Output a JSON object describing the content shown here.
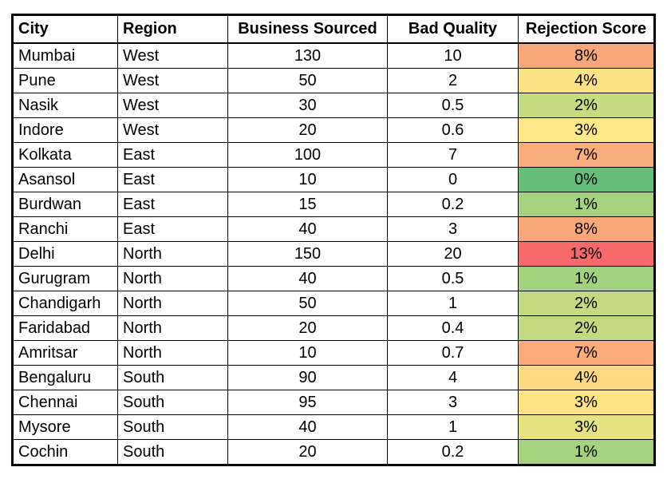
{
  "table": {
    "headers": [
      "City",
      "Region",
      "Business Sourced",
      "Bad Quality",
      "Rejection Score"
    ],
    "rows": [
      {
        "city": "Mumbai",
        "region": "West",
        "business": "130",
        "bad": "10",
        "rejection": "8%",
        "color": "#f8a77a"
      },
      {
        "city": "Pune",
        "region": "West",
        "business": "50",
        "bad": "2",
        "rejection": "4%",
        "color": "#fde186"
      },
      {
        "city": "Nasik",
        "region": "West",
        "business": "30",
        "bad": "0.5",
        "rejection": "2%",
        "color": "#c6dc82"
      },
      {
        "city": "Indore",
        "region": "West",
        "business": "20",
        "bad": "0.6",
        "rejection": "3%",
        "color": "#fde887"
      },
      {
        "city": "Kolkata",
        "region": "East",
        "business": "100",
        "bad": "7",
        "rejection": "7%",
        "color": "#f9ad7b"
      },
      {
        "city": "Asansol",
        "region": "East",
        "business": "10",
        "bad": "0",
        "rejection": "0%",
        "color": "#63be7b"
      },
      {
        "city": "Burdwan",
        "region": "East",
        "business": "15",
        "bad": "0.2",
        "rejection": "1%",
        "color": "#a6d280"
      },
      {
        "city": "Ranchi",
        "region": "East",
        "business": "40",
        "bad": "3",
        "rejection": "8%",
        "color": "#f8a77a"
      },
      {
        "city": "Delhi",
        "region": "North",
        "business": "150",
        "bad": "20",
        "rejection": "13%",
        "color": "#f8696b"
      },
      {
        "city": "Gurugram",
        "region": "North",
        "business": "40",
        "bad": "0.5",
        "rejection": "1%",
        "color": "#a4d17f"
      },
      {
        "city": "Chandigarh",
        "region": "North",
        "business": "50",
        "bad": "1",
        "rejection": "2%",
        "color": "#c3da81"
      },
      {
        "city": "Faridabad",
        "region": "North",
        "business": "20",
        "bad": "0.4",
        "rejection": "2%",
        "color": "#c3da81"
      },
      {
        "city": "Amritsar",
        "region": "North",
        "business": "10",
        "bad": "0.7",
        "rejection": "7%",
        "color": "#f9ab7b"
      },
      {
        "city": "Bengaluru",
        "region": "South",
        "business": "90",
        "bad": "4",
        "rejection": "4%",
        "color": "#fed883"
      },
      {
        "city": "Chennai",
        "region": "South",
        "business": "95",
        "bad": "3",
        "rejection": "3%",
        "color": "#fee385"
      },
      {
        "city": "Mysore",
        "region": "South",
        "business": "40",
        "bad": "1",
        "rejection": "3%",
        "color": "#e4e283"
      },
      {
        "city": "Cochin",
        "region": "South",
        "business": "20",
        "bad": "0.2",
        "rejection": "1%",
        "color": "#a6d280"
      }
    ]
  }
}
